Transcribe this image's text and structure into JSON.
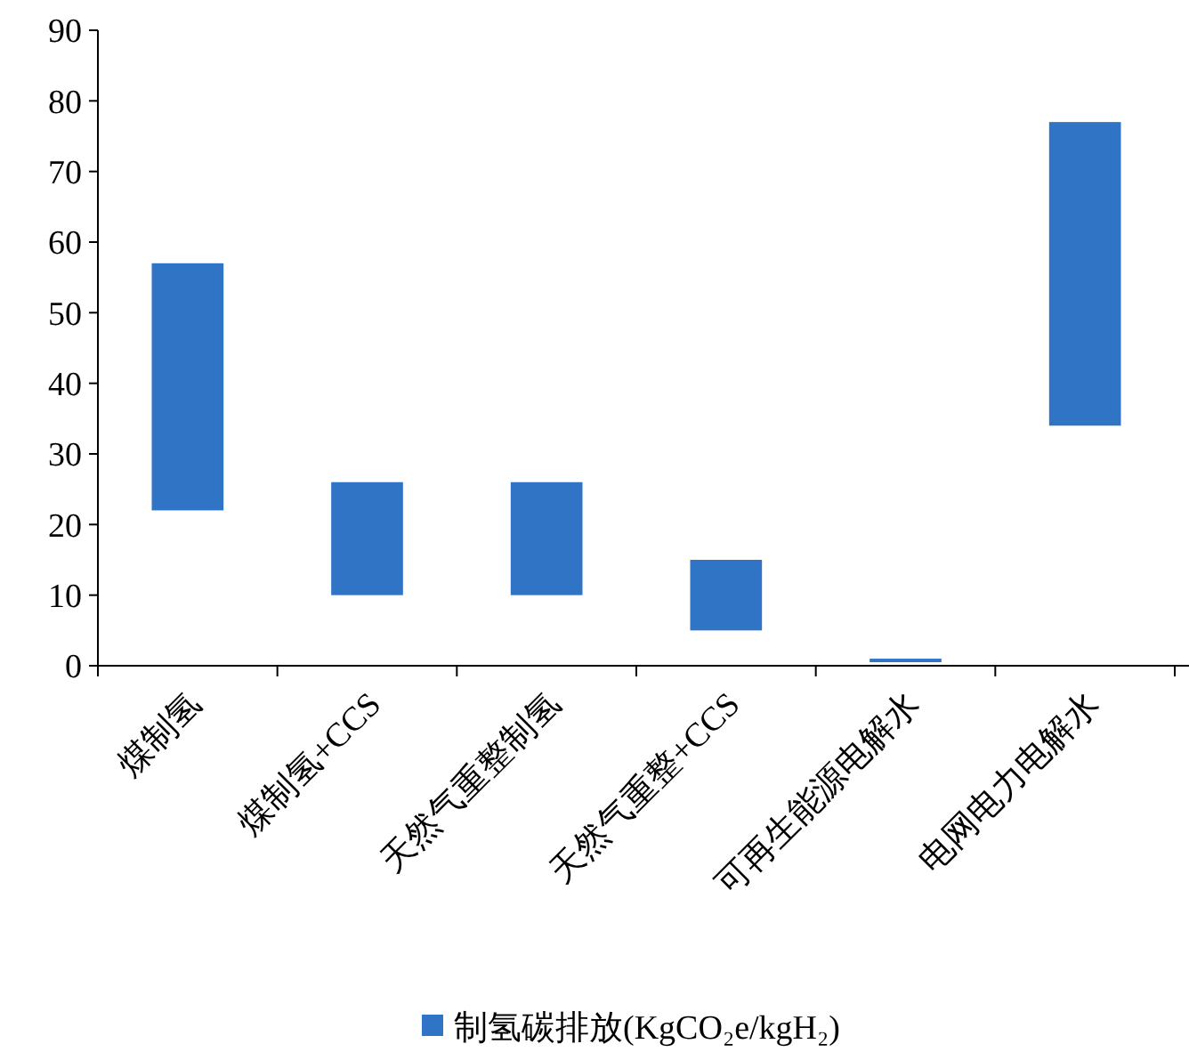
{
  "chart_data": {
    "type": "bar",
    "categories": [
      "煤制氢",
      "煤制氢+CCS",
      "天然气重整制氢",
      "天然气重整+CCS",
      "可再生能源电解水",
      "电网电力电解水"
    ],
    "series": [
      {
        "name": "制氢碳排放(KgCO₂e/kgH₂)",
        "color": "#3074c6",
        "values": [
          35,
          16,
          16,
          10,
          0.5,
          43
        ],
        "base": [
          22,
          10,
          10,
          5,
          0.5,
          34
        ]
      }
    ],
    "ylim": [
      0,
      90
    ],
    "yticks": [
      0,
      10,
      20,
      30,
      40,
      50,
      60,
      70,
      80,
      90
    ],
    "grid": false,
    "legend": "bottom"
  }
}
